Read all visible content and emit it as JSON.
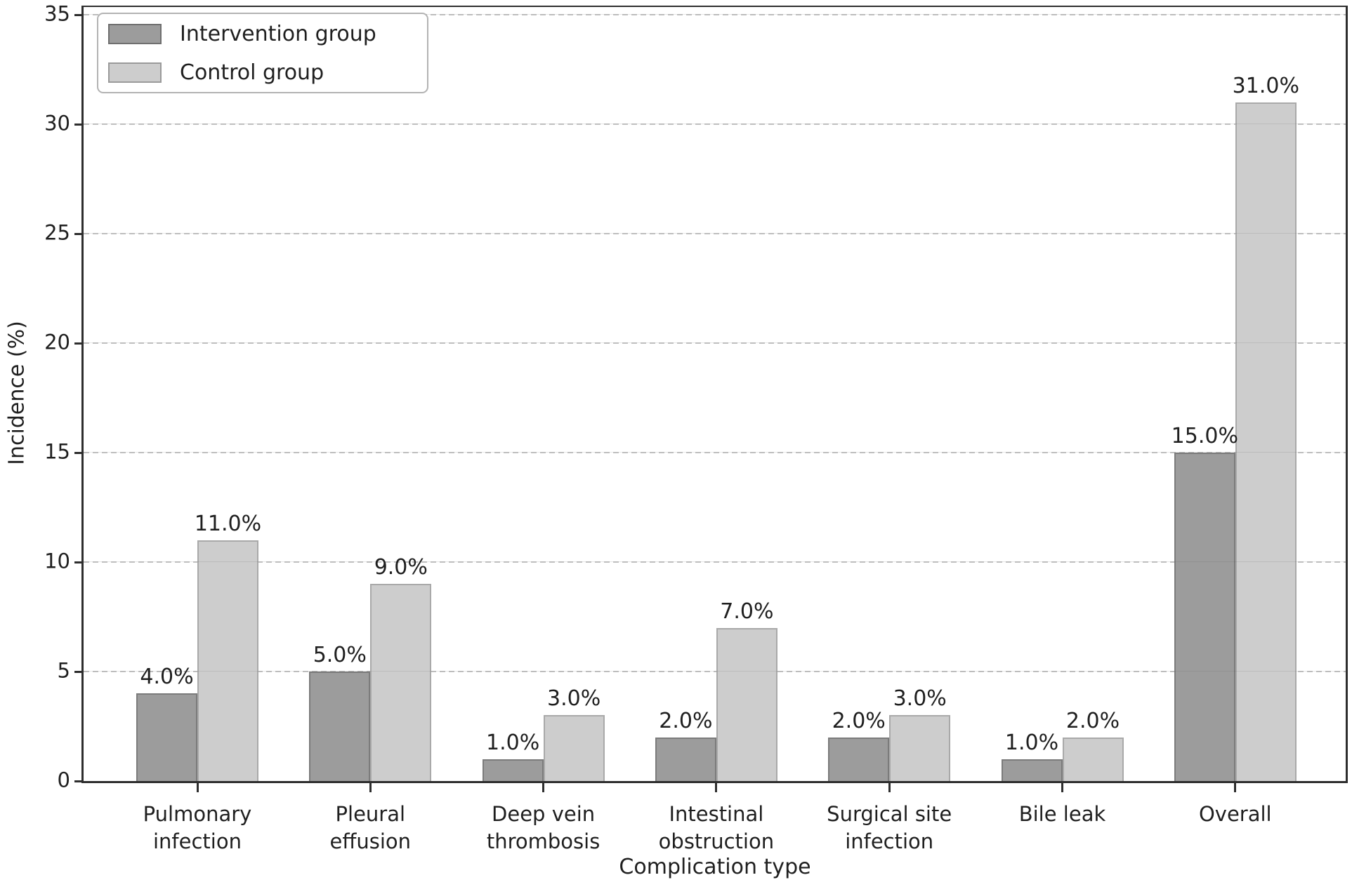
{
  "chart_data": {
    "type": "bar",
    "title": "",
    "xlabel": "Complication type",
    "ylabel": "Incidence (%)",
    "categories": [
      "Pulmonary infection",
      "Pleural effusion",
      "Deep vein thrombosis",
      "Intestinal obstruction",
      "Surgical site infection",
      "Bile leak",
      "Overall"
    ],
    "category_label_lines": [
      [
        "Pulmonary",
        "infection"
      ],
      [
        "Pleural",
        "effusion"
      ],
      [
        "Deep vein",
        "thrombosis"
      ],
      [
        "Intestinal",
        "obstruction"
      ],
      [
        "Surgical site",
        "infection"
      ],
      [
        "Bile leak"
      ],
      [
        "Overall"
      ]
    ],
    "series": [
      {
        "name": "Intervention group",
        "values": [
          4.0,
          5.0,
          1.0,
          2.0,
          2.0,
          1.0,
          15.0
        ],
        "value_labels": [
          "4.0%",
          "5.0%",
          "1.0%",
          "2.0%",
          "2.0%",
          "1.0%",
          "15.0%"
        ],
        "fill": "#9c9c9c",
        "edge": "#7b7b7b"
      },
      {
        "name": "Control group",
        "values": [
          11.0,
          9.0,
          3.0,
          7.0,
          3.0,
          2.0,
          31.0
        ],
        "value_labels": [
          "11.0%",
          "9.0%",
          "3.0%",
          "7.0%",
          "3.0%",
          "2.0%",
          "31.0%"
        ],
        "fill": "#cdcdcd",
        "edge": "#a9a9a9"
      }
    ],
    "yticks": [
      "0",
      "5",
      "10",
      "15",
      "20",
      "25",
      "30",
      "35"
    ],
    "ylim": [
      0,
      35.4
    ],
    "grid": {
      "axis": "y",
      "style": "dashed",
      "color": "#c6c6c6"
    },
    "legend": {
      "position": "upper-left",
      "items": [
        "Intervention group",
        "Control group"
      ]
    },
    "colors": {
      "background": "#ffffff",
      "spine": "#2e2e2e",
      "text": "#1f1f1f",
      "intervention_fill": "#9c9c9c",
      "control_fill": "#cdcdcd",
      "legend_border": "#b3b3b3"
    }
  }
}
